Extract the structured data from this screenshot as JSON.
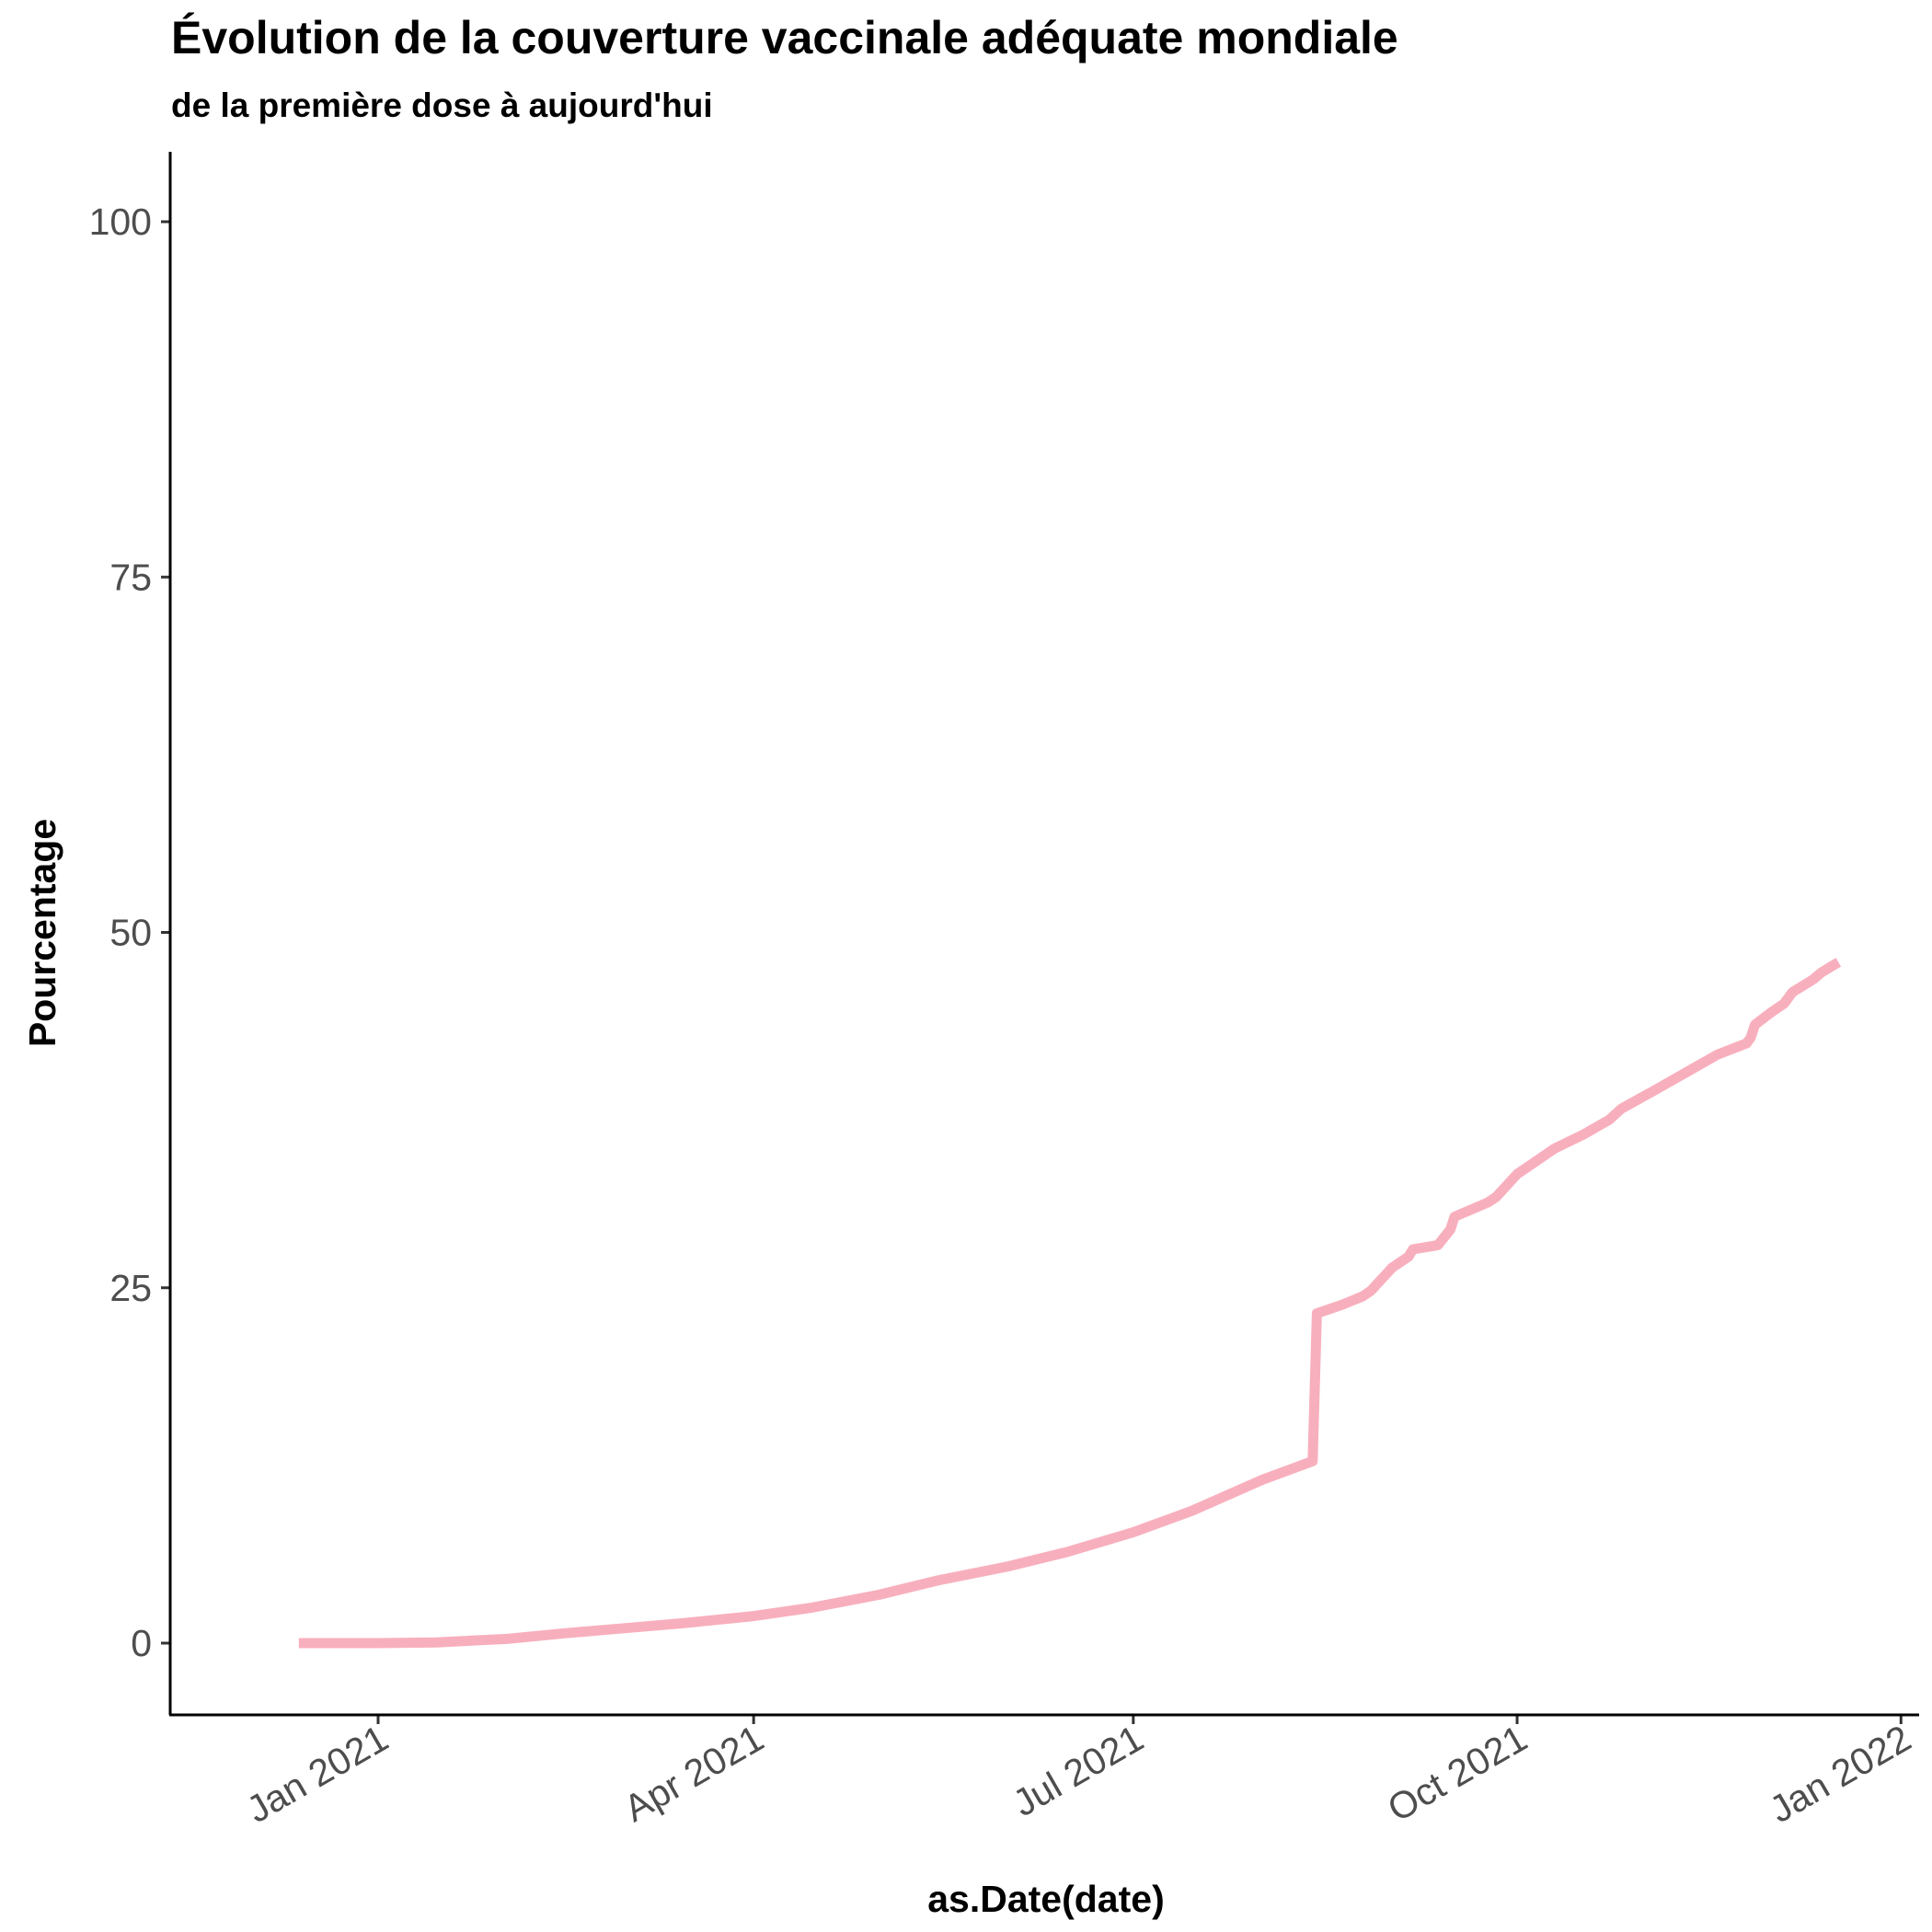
{
  "chart_data": {
    "type": "line",
    "title": "Évolution de la couverture vaccinale adéquate mondiale",
    "subtitle": "de la première dose à aujourd'hui",
    "xlabel": "as.Date(date)",
    "ylabel": "Pourcentage",
    "xlim": [
      "2020-11-18",
      "2022-01-04"
    ],
    "ylim": [
      -5,
      105
    ],
    "x_ticks": [
      {
        "date": "2021-01-01",
        "label": "Jan 2021"
      },
      {
        "date": "2021-04-01",
        "label": "Apr 2021"
      },
      {
        "date": "2021-07-01",
        "label": "Jul 2021"
      },
      {
        "date": "2021-10-01",
        "label": "Oct 2021"
      },
      {
        "date": "2022-01-01",
        "label": "Jan 2022"
      }
    ],
    "y_ticks": [
      0,
      25,
      50,
      75,
      100
    ],
    "grid": false,
    "legend": "none",
    "line_color": "#f8afbd",
    "series": [
      {
        "x": [
          "2020-12-13",
          "2021-01-01",
          "2021-01-15",
          "2021-02-01",
          "2021-02-15",
          "2021-03-01",
          "2021-03-15",
          "2021-04-01",
          "2021-04-15",
          "2021-05-01",
          "2021-05-15",
          "2021-06-01",
          "2021-06-15",
          "2021-07-01",
          "2021-07-15",
          "2021-08-01",
          "2021-08-13",
          "2021-08-14",
          "2021-08-20",
          "2021-08-25",
          "2021-08-27",
          "2021-09-01",
          "2021-09-05",
          "2021-09-06",
          "2021-09-12",
          "2021-09-15",
          "2021-09-16",
          "2021-09-24",
          "2021-09-26",
          "2021-10-01",
          "2021-10-10",
          "2021-10-17",
          "2021-10-23",
          "2021-10-26",
          "2021-11-03",
          "2021-11-12",
          "2021-11-18",
          "2021-11-25",
          "2021-11-26",
          "2021-11-27",
          "2021-12-01",
          "2021-12-04",
          "2021-12-06",
          "2021-12-11",
          "2021-12-13",
          "2021-12-17"
        ],
        "values": [
          0,
          0,
          0.05,
          0.3,
          0.7,
          1.05,
          1.4,
          1.9,
          2.5,
          3.4,
          4.4,
          5.4,
          6.4,
          7.8,
          9.3,
          11.5,
          12.8,
          23.2,
          23.8,
          24.4,
          24.8,
          26.4,
          27.2,
          27.7,
          28.0,
          29.1,
          30.0,
          31.0,
          31.4,
          33.0,
          34.8,
          35.8,
          36.8,
          37.6,
          38.9,
          40.4,
          41.4,
          42.2,
          42.6,
          43.5,
          44.4,
          45.0,
          45.8,
          46.7,
          47.2,
          47.9
        ]
      }
    ]
  }
}
